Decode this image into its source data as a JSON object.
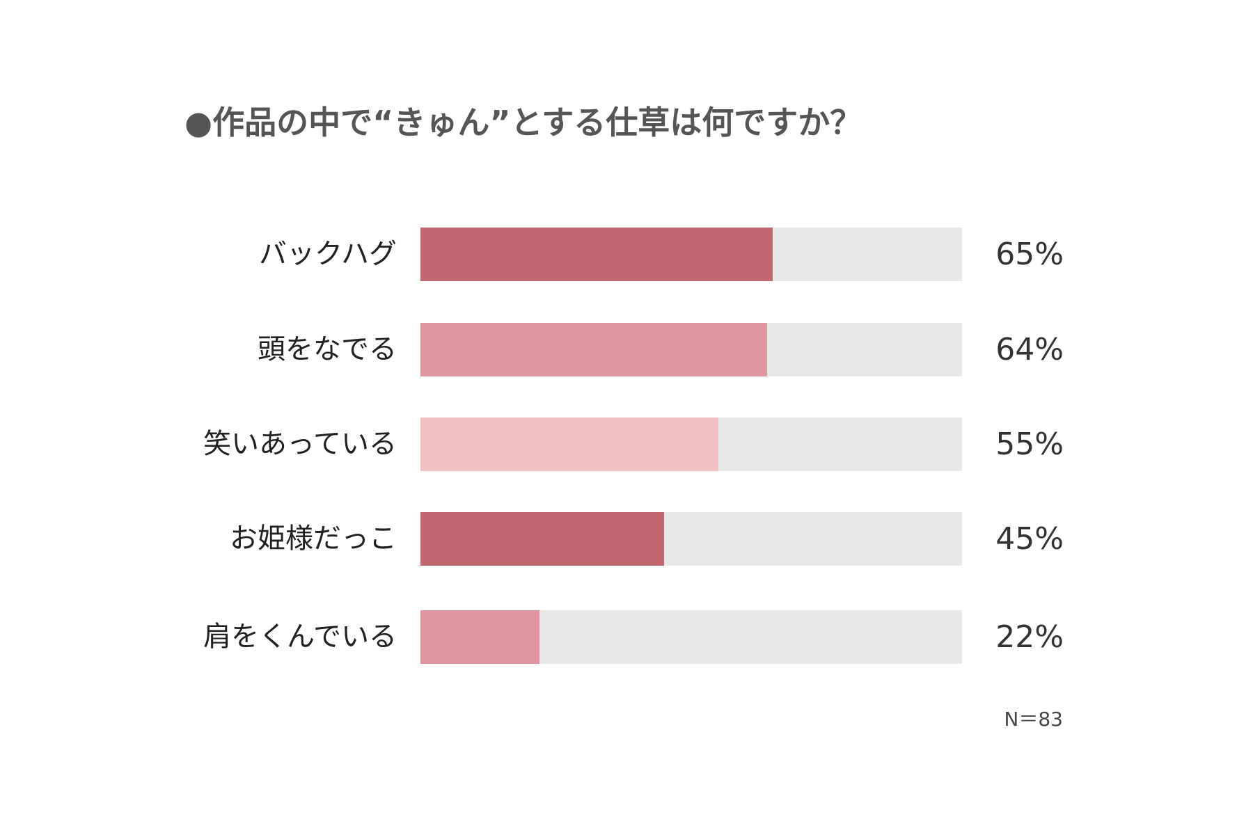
{
  "chart_data": {
    "type": "bar",
    "orientation": "horizontal",
    "title": "●作品の中で“きゅん”とする仕草は何ですか？",
    "categories": [
      "バックハグ",
      "頭をなでる",
      "笑いあっている",
      "お姫様だっこ",
      "肩をくんでいる"
    ],
    "values": [
      65,
      64,
      55,
      45,
      22
    ],
    "value_labels": [
      "65%",
      "64%",
      "55%",
      "45%",
      "22%"
    ],
    "colors": [
      "#c46672",
      "#e096a0",
      "#f0c0c3",
      "#c46672",
      "#e096a0"
    ],
    "track_color": "#e8e8e8",
    "xlim": [
      0,
      100
    ],
    "unit": "%",
    "note": "N＝83",
    "grid": false
  }
}
